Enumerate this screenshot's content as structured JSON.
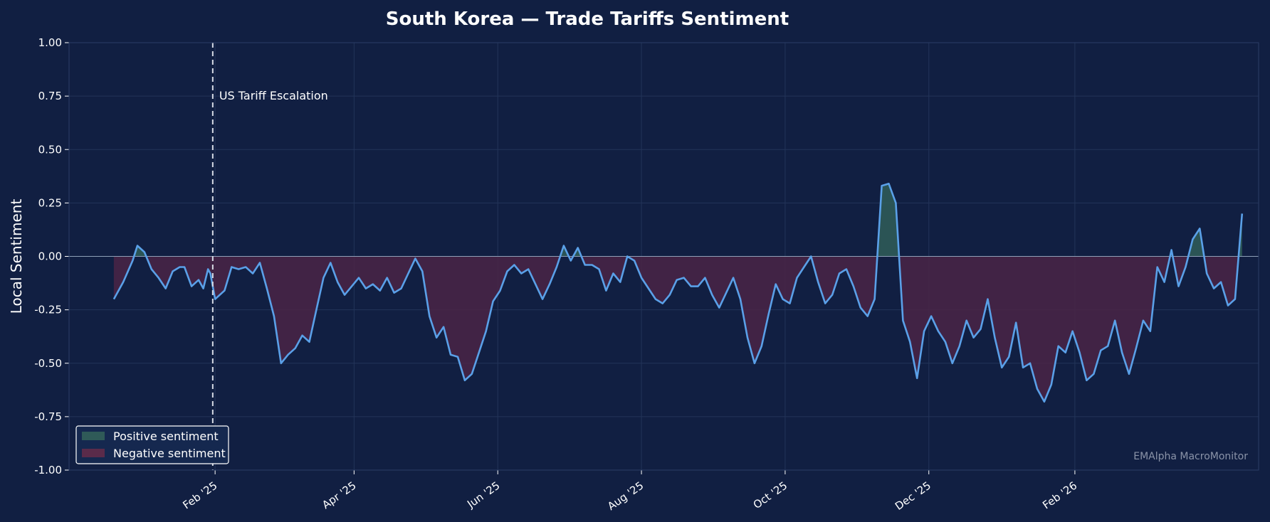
{
  "chart_data": {
    "type": "area",
    "title": "South Korea — Trade Tariffs Sentiment",
    "ylabel": "Local Sentiment",
    "xlabel": "",
    "ylim": [
      -1.0,
      1.0
    ],
    "xlim": [
      "2024-12-01",
      "2026-04-20"
    ],
    "grid": true,
    "y_ticks": [
      1.0,
      0.75,
      0.5,
      0.25,
      0.0,
      -0.25,
      -0.5,
      -0.75,
      -1.0
    ],
    "y_tick_labels": [
      "1.00",
      "0.75",
      "0.50",
      "0.25",
      "0.00",
      "-0.25",
      "-0.50",
      "-0.75",
      "-1.00"
    ],
    "x_ticks": [
      "2025-02-01",
      "2025-04-01",
      "2025-06-01",
      "2025-08-01",
      "2025-10-01",
      "2025-12-01",
      "2026-02-01"
    ],
    "x_tick_labels": [
      "Feb '25",
      "Apr '25",
      "Jun '25",
      "Aug '25",
      "Oct '25",
      "Dec '25",
      "Feb '26"
    ],
    "annotation": {
      "date": "2025-01-31",
      "label": "US Tariff Escalation"
    },
    "legend": {
      "placement": "lower-left",
      "entries": [
        {
          "label": "Positive sentiment",
          "color": "#2f5a58"
        },
        {
          "label": "Negative sentiment",
          "color": "#5a2b4a"
        }
      ]
    },
    "watermark": "EMAlpha MacroMonitor",
    "colors": {
      "background": "#111f42",
      "line": "#5aa0e8",
      "positive_fill": "#2f5a58",
      "negative_fill": "#4a2545",
      "grid": "#233459",
      "zero_line": "#8fa0b8"
    },
    "series": [
      {
        "points": [
          [
            "2024-12-20",
            -0.2
          ],
          [
            "2024-12-24",
            -0.12
          ],
          [
            "2024-12-28",
            -0.02
          ],
          [
            "2024-12-30",
            0.05
          ],
          [
            "2025-01-02",
            0.02
          ],
          [
            "2025-01-05",
            -0.06
          ],
          [
            "2025-01-08",
            -0.1
          ],
          [
            "2025-01-11",
            -0.15
          ],
          [
            "2025-01-14",
            -0.07
          ],
          [
            "2025-01-17",
            -0.05
          ],
          [
            "2025-01-19",
            -0.05
          ],
          [
            "2025-01-22",
            -0.14
          ],
          [
            "2025-01-25",
            -0.11
          ],
          [
            "2025-01-27",
            -0.15
          ],
          [
            "2025-01-29",
            -0.06
          ],
          [
            "2025-01-30",
            -0.08
          ],
          [
            "2025-02-01",
            -0.2
          ],
          [
            "2025-02-03",
            -0.18
          ],
          [
            "2025-02-05",
            -0.16
          ],
          [
            "2025-02-08",
            -0.05
          ],
          [
            "2025-02-11",
            -0.06
          ],
          [
            "2025-02-14",
            -0.05
          ],
          [
            "2025-02-17",
            -0.08
          ],
          [
            "2025-02-20",
            -0.03
          ],
          [
            "2025-02-23",
            -0.15
          ],
          [
            "2025-02-26",
            -0.28
          ],
          [
            "2025-03-01",
            -0.5
          ],
          [
            "2025-03-04",
            -0.46
          ],
          [
            "2025-03-07",
            -0.43
          ],
          [
            "2025-03-10",
            -0.37
          ],
          [
            "2025-03-13",
            -0.4
          ],
          [
            "2025-03-16",
            -0.25
          ],
          [
            "2025-03-19",
            -0.1
          ],
          [
            "2025-03-22",
            -0.03
          ],
          [
            "2025-03-25",
            -0.12
          ],
          [
            "2025-03-28",
            -0.18
          ],
          [
            "2025-03-31",
            -0.14
          ],
          [
            "2025-04-03",
            -0.1
          ],
          [
            "2025-04-06",
            -0.15
          ],
          [
            "2025-04-09",
            -0.13
          ],
          [
            "2025-04-12",
            -0.16
          ],
          [
            "2025-04-15",
            -0.1
          ],
          [
            "2025-04-18",
            -0.17
          ],
          [
            "2025-04-21",
            -0.15
          ],
          [
            "2025-04-24",
            -0.08
          ],
          [
            "2025-04-27",
            -0.01
          ],
          [
            "2025-04-30",
            -0.07
          ],
          [
            "2025-05-03",
            -0.28
          ],
          [
            "2025-05-06",
            -0.38
          ],
          [
            "2025-05-09",
            -0.33
          ],
          [
            "2025-05-12",
            -0.46
          ],
          [
            "2025-05-15",
            -0.47
          ],
          [
            "2025-05-18",
            -0.58
          ],
          [
            "2025-05-21",
            -0.55
          ],
          [
            "2025-05-24",
            -0.45
          ],
          [
            "2025-05-27",
            -0.35
          ],
          [
            "2025-05-30",
            -0.21
          ],
          [
            "2025-06-02",
            -0.16
          ],
          [
            "2025-06-05",
            -0.07
          ],
          [
            "2025-06-08",
            -0.04
          ],
          [
            "2025-06-11",
            -0.08
          ],
          [
            "2025-06-14",
            -0.06
          ],
          [
            "2025-06-17",
            -0.13
          ],
          [
            "2025-06-20",
            -0.2
          ],
          [
            "2025-06-23",
            -0.13
          ],
          [
            "2025-06-26",
            -0.05
          ],
          [
            "2025-06-29",
            0.05
          ],
          [
            "2025-07-02",
            -0.02
          ],
          [
            "2025-07-05",
            0.04
          ],
          [
            "2025-07-08",
            -0.04
          ],
          [
            "2025-07-11",
            -0.04
          ],
          [
            "2025-07-14",
            -0.06
          ],
          [
            "2025-07-17",
            -0.16
          ],
          [
            "2025-07-20",
            -0.08
          ],
          [
            "2025-07-23",
            -0.12
          ],
          [
            "2025-07-26",
            0.0
          ],
          [
            "2025-07-29",
            -0.02
          ],
          [
            "2025-08-01",
            -0.1
          ],
          [
            "2025-08-04",
            -0.15
          ],
          [
            "2025-08-07",
            -0.2
          ],
          [
            "2025-08-10",
            -0.22
          ],
          [
            "2025-08-13",
            -0.18
          ],
          [
            "2025-08-16",
            -0.11
          ],
          [
            "2025-08-19",
            -0.1
          ],
          [
            "2025-08-22",
            -0.14
          ],
          [
            "2025-08-25",
            -0.14
          ],
          [
            "2025-08-28",
            -0.1
          ],
          [
            "2025-08-31",
            -0.18
          ],
          [
            "2025-09-03",
            -0.24
          ],
          [
            "2025-09-06",
            -0.17
          ],
          [
            "2025-09-09",
            -0.1
          ],
          [
            "2025-09-12",
            -0.2
          ],
          [
            "2025-09-15",
            -0.38
          ],
          [
            "2025-09-18",
            -0.5
          ],
          [
            "2025-09-21",
            -0.42
          ],
          [
            "2025-09-24",
            -0.27
          ],
          [
            "2025-09-27",
            -0.13
          ],
          [
            "2025-09-30",
            -0.2
          ],
          [
            "2025-10-03",
            -0.22
          ],
          [
            "2025-10-06",
            -0.1
          ],
          [
            "2025-10-09",
            -0.05
          ],
          [
            "2025-10-12",
            0.0
          ],
          [
            "2025-10-15",
            -0.12
          ],
          [
            "2025-10-18",
            -0.22
          ],
          [
            "2025-10-21",
            -0.18
          ],
          [
            "2025-10-24",
            -0.08
          ],
          [
            "2025-10-27",
            -0.06
          ],
          [
            "2025-10-30",
            -0.14
          ],
          [
            "2025-11-02",
            -0.24
          ],
          [
            "2025-11-05",
            -0.28
          ],
          [
            "2025-11-08",
            -0.2
          ],
          [
            "2025-11-11",
            0.33
          ],
          [
            "2025-11-14",
            0.34
          ],
          [
            "2025-11-17",
            0.25
          ],
          [
            "2025-11-20",
            -0.3
          ],
          [
            "2025-11-23",
            -0.4
          ],
          [
            "2025-11-26",
            -0.57
          ],
          [
            "2025-11-29",
            -0.35
          ],
          [
            "2025-12-02",
            -0.28
          ],
          [
            "2025-12-05",
            -0.35
          ],
          [
            "2025-12-08",
            -0.4
          ],
          [
            "2025-12-11",
            -0.5
          ],
          [
            "2025-12-14",
            -0.42
          ],
          [
            "2025-12-17",
            -0.3
          ],
          [
            "2025-12-20",
            -0.38
          ],
          [
            "2025-12-23",
            -0.34
          ],
          [
            "2025-12-26",
            -0.2
          ],
          [
            "2025-12-29",
            -0.38
          ],
          [
            "2026-01-01",
            -0.52
          ],
          [
            "2026-01-04",
            -0.47
          ],
          [
            "2026-01-07",
            -0.31
          ],
          [
            "2026-01-10",
            -0.52
          ],
          [
            "2026-01-13",
            -0.5
          ],
          [
            "2026-01-16",
            -0.62
          ],
          [
            "2026-01-19",
            -0.68
          ],
          [
            "2026-01-22",
            -0.6
          ],
          [
            "2026-01-25",
            -0.42
          ],
          [
            "2026-01-28",
            -0.45
          ],
          [
            "2026-01-31",
            -0.35
          ],
          [
            "2026-02-03",
            -0.45
          ],
          [
            "2026-02-06",
            -0.58
          ],
          [
            "2026-02-09",
            -0.55
          ],
          [
            "2026-02-12",
            -0.44
          ],
          [
            "2026-02-15",
            -0.42
          ],
          [
            "2026-02-18",
            -0.3
          ],
          [
            "2026-02-21",
            -0.45
          ],
          [
            "2026-02-24",
            -0.55
          ],
          [
            "2026-02-27",
            -0.43
          ],
          [
            "2026-03-02",
            -0.3
          ],
          [
            "2026-03-05",
            -0.35
          ],
          [
            "2026-03-08",
            -0.05
          ],
          [
            "2026-03-11",
            -0.12
          ],
          [
            "2026-03-14",
            0.03
          ],
          [
            "2026-03-17",
            -0.14
          ],
          [
            "2026-03-20",
            -0.05
          ],
          [
            "2026-03-23",
            0.08
          ],
          [
            "2026-03-26",
            0.13
          ],
          [
            "2026-03-29",
            -0.08
          ],
          [
            "2026-04-01",
            -0.15
          ],
          [
            "2026-04-04",
            -0.12
          ],
          [
            "2026-04-07",
            -0.23
          ],
          [
            "2026-04-10",
            -0.2
          ],
          [
            "2026-04-13",
            0.2
          ]
        ]
      }
    ]
  }
}
